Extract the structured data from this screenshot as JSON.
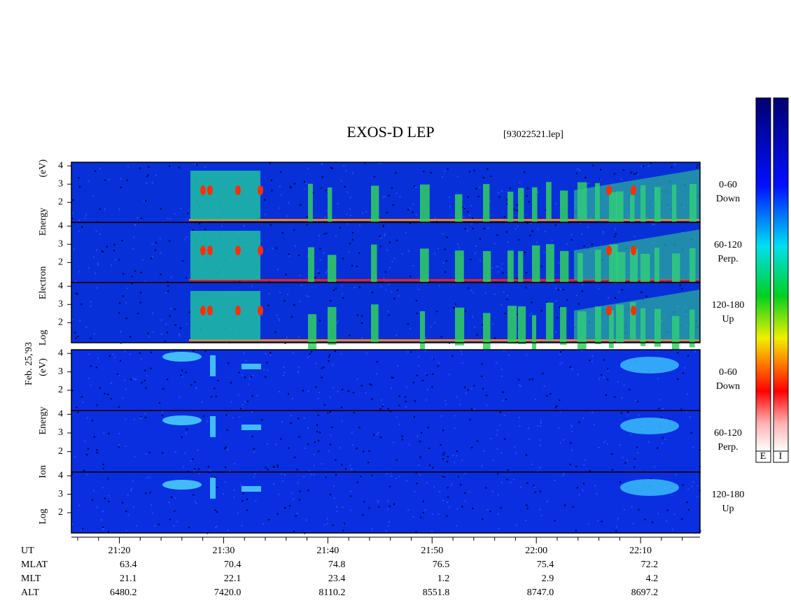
{
  "chart_data": {
    "type": "spectrogram",
    "title": "EXOS-D LEP",
    "subtitle": "[93022521.lep]",
    "date_label": "Feb. 25,'93",
    "xlim": [
      1275.4,
      1335.7
    ],
    "xticks": [
      {
        "value": 1280,
        "label": "21:20"
      },
      {
        "value": 1290,
        "label": "21:30"
      },
      {
        "value": 1300,
        "label": "21:40"
      },
      {
        "value": 1310,
        "label": "21:50"
      },
      {
        "value": 1320,
        "label": "22:00"
      },
      {
        "value": 1330,
        "label": "22:10"
      }
    ],
    "xminorticks": [
      1276,
      1278,
      1282,
      1284,
      1286,
      1288,
      1292,
      1294,
      1296,
      1298,
      1302,
      1304,
      1306,
      1308,
      1312,
      1314,
      1316,
      1318,
      1322,
      1324,
      1326,
      1328,
      1332,
      1334
    ],
    "ylim": [
      0.9,
      4.2
    ],
    "yticks": [
      2,
      3,
      4
    ],
    "groups": [
      {
        "ylabel": "Log Electron Energy (eV)",
        "panels": [
          {
            "angle": "0-60",
            "direction": "Down"
          },
          {
            "angle": "60-120",
            "direction": "Perp."
          },
          {
            "angle": "120-180",
            "direction": "Up"
          }
        ]
      },
      {
        "ylabel": "Log Ion Energy (eV)",
        "panels": [
          {
            "angle": "0-60",
            "direction": "Down"
          },
          {
            "angle": "60-120",
            "direction": "Perp."
          },
          {
            "angle": "120-180",
            "direction": "Up"
          }
        ]
      }
    ],
    "table": {
      "row_labels": [
        "UT",
        "MLAT",
        "MLT",
        "ALT"
      ],
      "rows": [
        [
          "63.4",
          "70.4",
          "74.8",
          "76.5",
          "75.4",
          "72.2"
        ],
        [
          "21.1",
          "22.1",
          "23.4",
          "1.2",
          "2.9",
          "4.2"
        ],
        [
          "6480.2",
          "7420.0",
          "8110.2",
          "8551.8",
          "8747.0",
          "8697.2"
        ]
      ]
    },
    "colorbar_labels": [
      "E",
      "I"
    ]
  }
}
